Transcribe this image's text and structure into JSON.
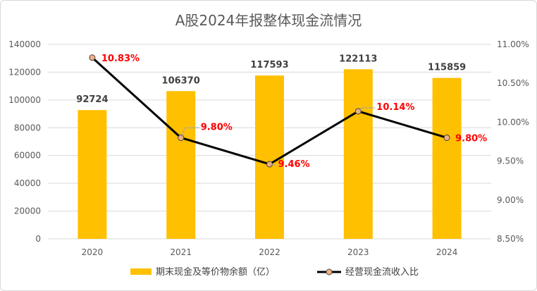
{
  "chart_data": {
    "type": "bar+line",
    "title": "A股2024年报整体现金流情况",
    "categories": [
      "2020",
      "2021",
      "2022",
      "2023",
      "2024"
    ],
    "series": [
      {
        "name": "期末现金及等价物余额（亿）",
        "type": "bar",
        "axis": "left",
        "color": "#ffc000",
        "values": [
          92724,
          106370,
          117593,
          122113,
          115859
        ],
        "labels": [
          "92724",
          "106370",
          "117593",
          "122113",
          "115859"
        ]
      },
      {
        "name": "经营现金流收入比",
        "type": "line",
        "axis": "right",
        "color": "#000000",
        "marker_color": "#f4b183",
        "values": [
          10.83,
          9.8,
          9.46,
          10.14,
          9.8
        ],
        "labels": [
          "10.83%",
          "9.80%",
          "9.46%",
          "10.14%",
          "9.80%"
        ]
      }
    ],
    "y_left": {
      "min": 0,
      "max": 140000,
      "step": 20000,
      "ticks": [
        "0",
        "20000",
        "40000",
        "60000",
        "80000",
        "100000",
        "120000",
        "140000"
      ]
    },
    "y_right": {
      "min": 8.5,
      "max": 11.0,
      "step": 0.5,
      "ticks": [
        "8.50%",
        "9.00%",
        "9.50%",
        "10.00%",
        "10.50%",
        "11.00%"
      ]
    },
    "grid": true,
    "legend_position": "bottom"
  }
}
